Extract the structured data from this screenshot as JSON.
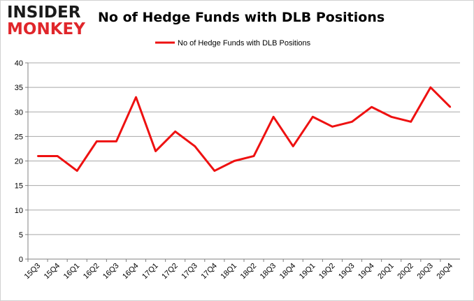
{
  "brand": {
    "line1": "INSIDER",
    "line2": "MONKEY"
  },
  "colors": {
    "series": "#ee1111",
    "grid": "#a8a8a8",
    "axis": "#808080"
  },
  "chart_data": {
    "type": "line",
    "title": "No of Hedge Funds with DLB Positions",
    "xlabel": "",
    "ylabel": "",
    "ylim": [
      0,
      40
    ],
    "yticks": [
      0,
      5,
      10,
      15,
      20,
      25,
      30,
      35,
      40
    ],
    "grid": true,
    "legend_position": "top-center",
    "categories": [
      "15Q3",
      "15Q4",
      "16Q1",
      "16Q2",
      "16Q3",
      "16Q4",
      "17Q1",
      "17Q2",
      "17Q3",
      "17Q4",
      "18Q1",
      "18Q2",
      "18Q3",
      "18Q4",
      "19Q1",
      "19Q2",
      "19Q3",
      "19Q4",
      "20Q1",
      "20Q2",
      "20Q3",
      "20Q4"
    ],
    "series": [
      {
        "name": "No of Hedge Funds with DLB Positions",
        "values": [
          21,
          21,
          18,
          24,
          24,
          33,
          22,
          26,
          23,
          18,
          20,
          21,
          29,
          23,
          29,
          27,
          28,
          31,
          29,
          28,
          35,
          31
        ]
      }
    ]
  }
}
